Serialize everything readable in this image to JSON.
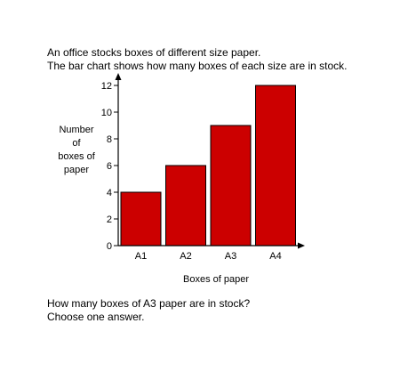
{
  "intro": {
    "line1": "An office stocks boxes of different size paper.",
    "line2": "The bar chart shows how many boxes of each size are in stock."
  },
  "question": {
    "line1": "How many boxes of A3 paper are in stock?",
    "line2": "Choose one answer."
  },
  "chart_data": {
    "type": "bar",
    "categories": [
      "A1",
      "A2",
      "A3",
      "A4"
    ],
    "values": [
      4,
      6,
      9,
      12
    ],
    "title": "",
    "xlabel": "Boxes of paper",
    "ylabel_lines": [
      "Number",
      "of",
      "boxes of",
      "paper"
    ],
    "ylim": [
      0,
      12
    ],
    "yticks": [
      0,
      2,
      4,
      6,
      8,
      10,
      12
    ],
    "grid": false,
    "bar_color": "#cc0000",
    "bar_edge_color": "#000000"
  }
}
